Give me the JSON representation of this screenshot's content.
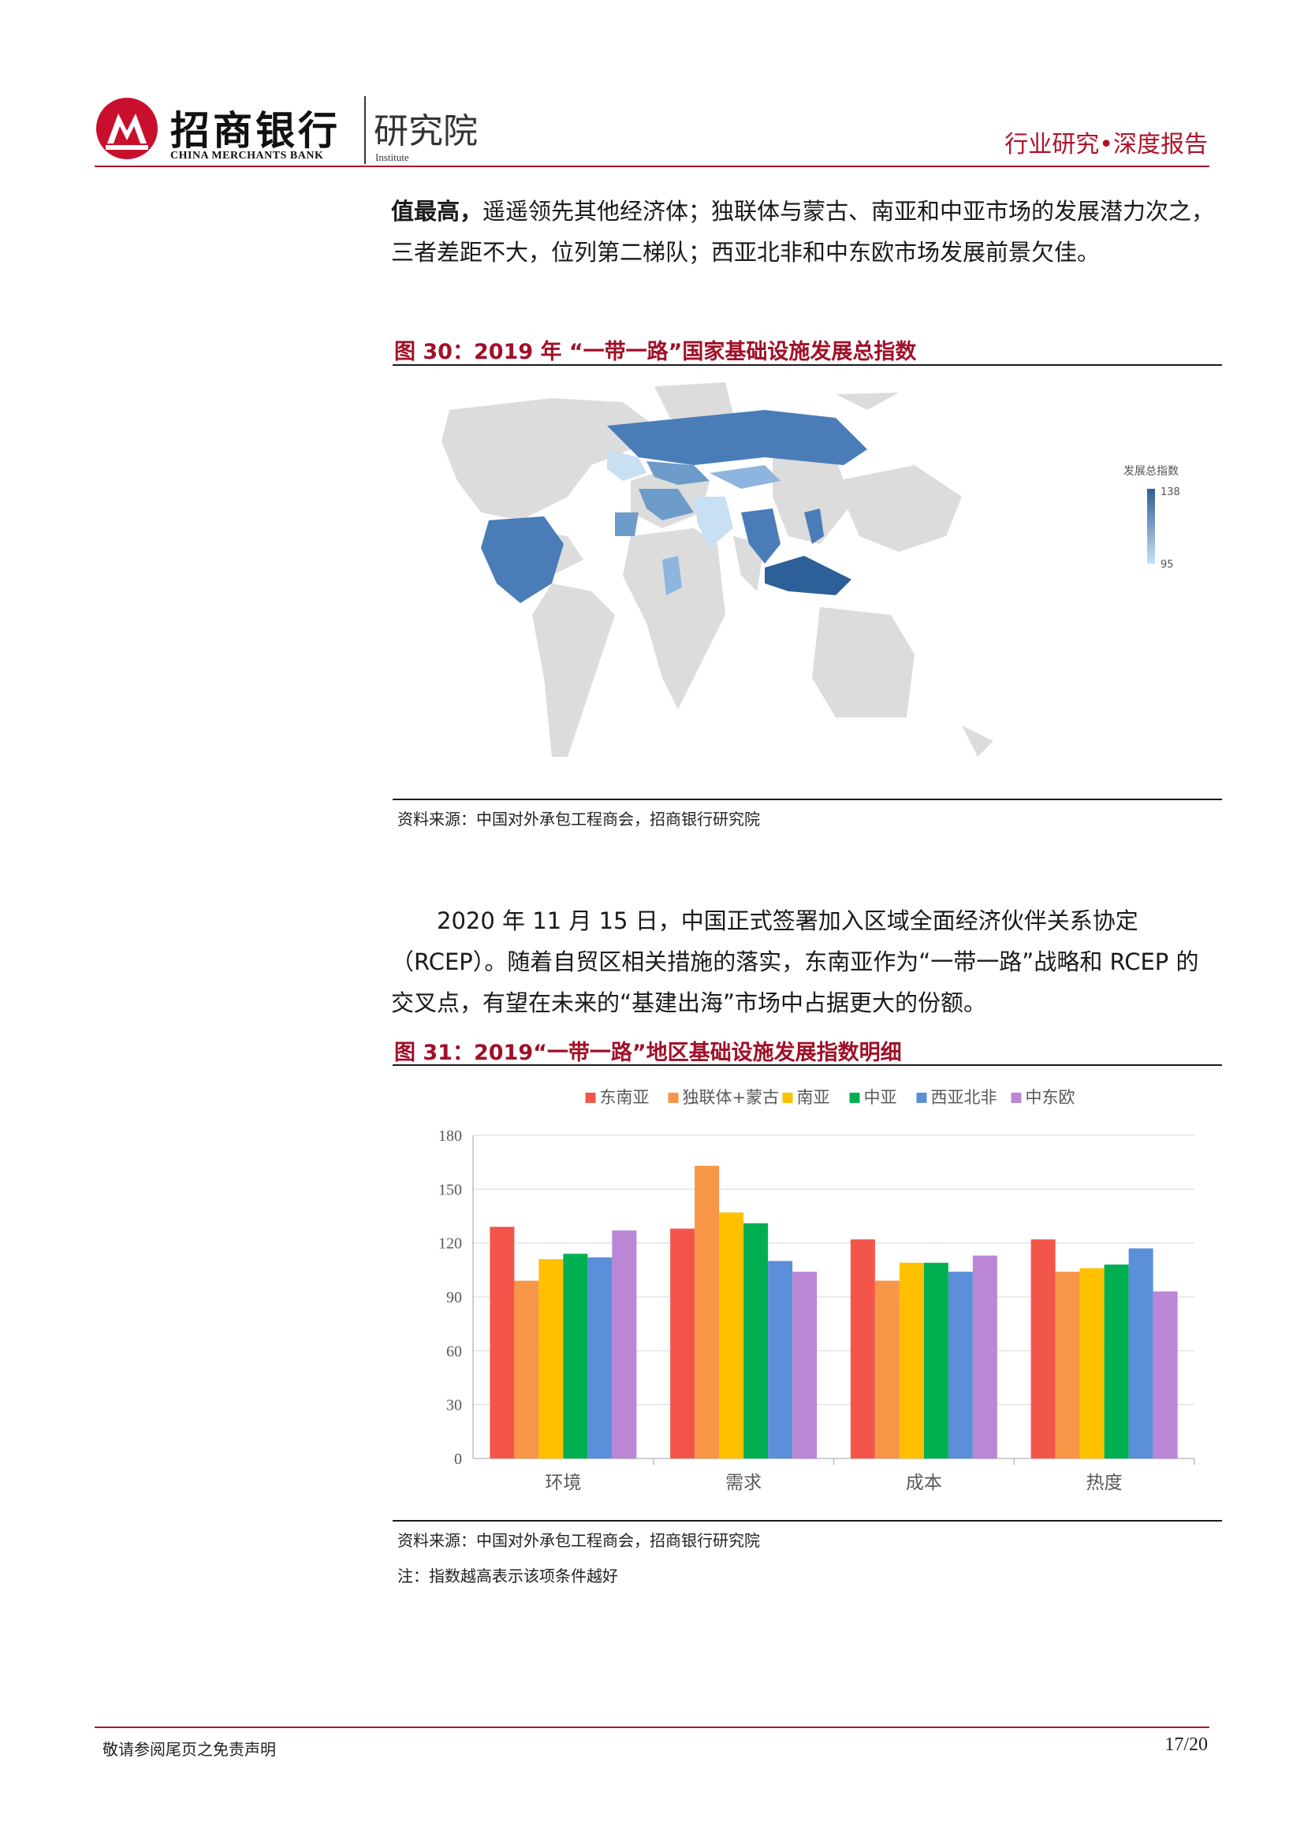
{
  "header": {
    "brand_cn": "招商银行",
    "brand_en": "CHINA MERCHANTS BANK",
    "institute_cn": "研究院",
    "institute_en": "Institute",
    "report_type": "行业研究•深度报告"
  },
  "intro": {
    "bold": "值最高，",
    "rest": "遥遥领先其他经济体；独联体与蒙古、南亚和中亚市场的发展潜力次之，三者差距不大，位列第二梯队；西亚北非和中东欧市场发展前景欠佳。"
  },
  "figure30": {
    "title": "图 30：2019 年 “一带一路”国家基础设施发展总指数",
    "legend_title": "发展总指数",
    "legend_max": "138",
    "legend_min": "95",
    "colors": {
      "high": "#2d5f98",
      "mid": "#6d9ccb",
      "low": "#c9dff2",
      "land": "#dcdcdc"
    },
    "source": "资料来源：中国对外承包工程商会，招商银行研究院"
  },
  "paragraph": {
    "text": "2020 年 11 月 15 日，中国正式签署加入区域全面经济伙伴关系协定（RCEP）。随着自贸区相关措施的落实，东南亚作为“一带一路”战略和 RCEP 的交叉点，有望在未来的“基建出海”市场中占据更大的份额。"
  },
  "figure31": {
    "title": "图 31：2019“一带一路”地区基础设施发展指数明细",
    "source": "资料来源：中国对外承包工程商会，招商银行研究院",
    "note": "注：指数越高表示该项条件越好"
  },
  "chart_data": {
    "type": "bar",
    "categories": [
      "环境",
      "需求",
      "成本",
      "热度"
    ],
    "series": [
      {
        "name": "东南亚",
        "color": "#f4554a",
        "values": [
          129,
          128,
          122,
          122
        ]
      },
      {
        "name": "独联体+蒙古",
        "color": "#f79646",
        "values": [
          99,
          163,
          99,
          104
        ]
      },
      {
        "name": "南亚",
        "color": "#ffc000",
        "values": [
          111,
          137,
          109,
          106
        ]
      },
      {
        "name": "中亚",
        "color": "#00b050",
        "values": [
          114,
          131,
          109,
          108
        ]
      },
      {
        "name": "西亚北非",
        "color": "#5b8fd9",
        "values": [
          112,
          110,
          104,
          117
        ]
      },
      {
        "name": "中东欧",
        "color": "#bb86d6",
        "values": [
          127,
          104,
          113,
          93
        ]
      }
    ],
    "ylim": [
      0,
      180
    ],
    "yticks": [
      0,
      30,
      60,
      90,
      120,
      150,
      180
    ],
    "grid": true,
    "legend_position": "top"
  },
  "footer": {
    "disclaimer": "敬请参阅尾页之免责声明",
    "page": "17/20"
  }
}
